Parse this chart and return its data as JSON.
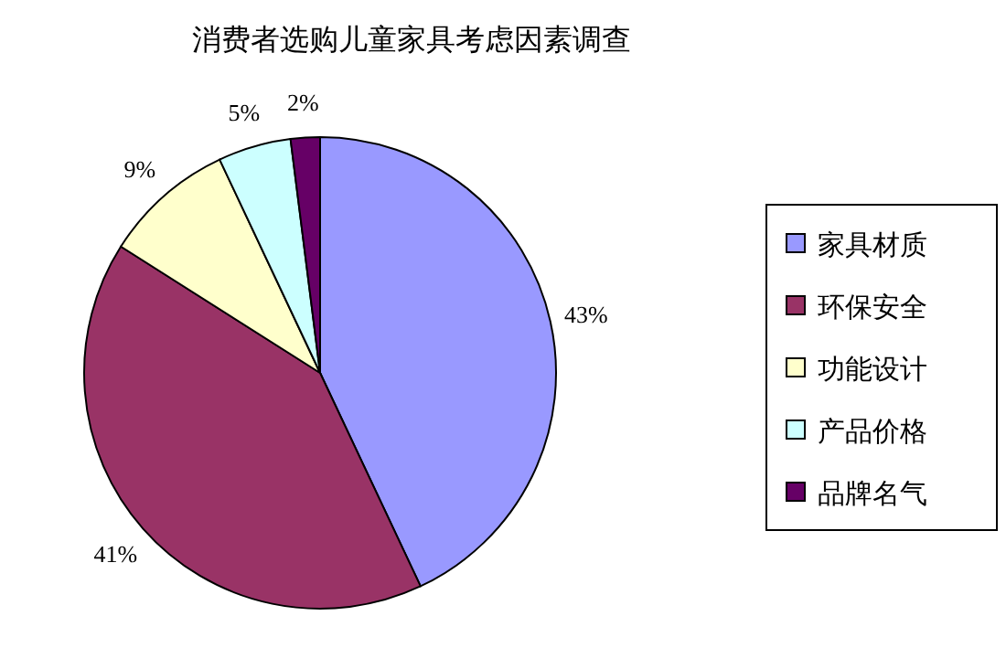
{
  "chart_data": {
    "type": "pie",
    "title": "消费者选购儿童家具考虑因素调查",
    "categories": [
      "家具材质",
      "环保安全",
      "功能设计",
      "产品价格",
      "品牌名气"
    ],
    "values": [
      43,
      41,
      9,
      5,
      2
    ],
    "colors": [
      "#9999ff",
      "#993366",
      "#ffffcc",
      "#ccffff",
      "#660066"
    ],
    "value_labels": [
      "43%",
      "41%",
      "9%",
      "5%",
      "2%"
    ],
    "legend": "right"
  }
}
